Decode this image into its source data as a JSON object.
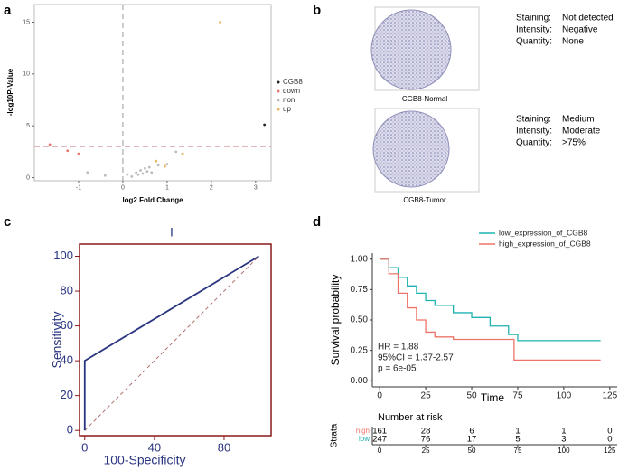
{
  "panel_labels": [
    "a",
    "b",
    "c",
    "d"
  ],
  "chart_data": [
    {
      "type": "scatter",
      "x_label": "log2 Fold Change",
      "y_label": "-log10P-Value",
      "xlim": [
        -2,
        3.35
      ],
      "ylim": [
        -0.3,
        16.7
      ],
      "xticks": [
        -1,
        0,
        1,
        2,
        3
      ],
      "yticks": [
        0,
        5,
        10,
        15
      ],
      "vline": 0,
      "hline": 3,
      "series": [
        {
          "name": "CGB8",
          "color": "#222222",
          "x": [
            3.2
          ],
          "values": [
            5.1
          ]
        },
        {
          "name": "down",
          "color": "#e8756b",
          "x": [
            -1.65,
            -1.25,
            -1.0
          ],
          "values": [
            3.2,
            2.6,
            2.3
          ]
        },
        {
          "name": "non",
          "color": "#bbbbbb",
          "x": [
            -0.8,
            -0.4,
            0.1,
            0.2,
            0.3,
            0.35,
            0.4,
            0.45,
            0.5,
            0.55,
            0.6,
            0.65,
            0.8,
            1.0,
            1.2
          ],
          "values": [
            0.5,
            0.2,
            0.3,
            0.1,
            0.5,
            0.3,
            0.7,
            0.4,
            0.9,
            0.6,
            1.0,
            0.5,
            1.2,
            1.3,
            2.5
          ]
        },
        {
          "name": "up",
          "color": "#e5b45c",
          "x": [
            2.2,
            0.75,
            0.95,
            1.35
          ],
          "values": [
            15,
            1.6,
            1.1,
            2.3
          ]
        }
      ]
    },
    {
      "type": "roc",
      "title": "I",
      "x_label": "100-Specificity",
      "y_label": "Sensitivity",
      "xlim": [
        -3,
        107
      ],
      "ylim": [
        -3,
        107
      ],
      "xticks": [
        0,
        40,
        80
      ],
      "yticks": [
        0,
        20,
        40,
        60,
        80,
        100
      ],
      "series": [
        {
          "color": "#2a3580",
          "x": [
            0,
            0,
            100
          ],
          "values": [
            0,
            40,
            100
          ]
        }
      ]
    },
    {
      "type": "survival",
      "x_label": "Time",
      "y_label": "Survival probability",
      "xlim": [
        -4,
        129
      ],
      "ylim": [
        -0.05,
        1.05
      ],
      "xticks": [
        0,
        25,
        50,
        75,
        100,
        125
      ],
      "yticks": [
        {
          "value": 0,
          "label": "0.00"
        },
        {
          "value": 0.25,
          "label": "0.25"
        },
        {
          "value": 0.5,
          "label": "0.50"
        },
        {
          "value": 0.75,
          "label": "0.75"
        },
        {
          "value": 1,
          "label": "1.00"
        }
      ],
      "series": [
        {
          "name": "low_expression_of_CGB8",
          "color": "#1fb3b0",
          "x": [
            0,
            5,
            10,
            15,
            20,
            25,
            30,
            40,
            50,
            60,
            70,
            75,
            120
          ],
          "values": [
            1,
            0.93,
            0.85,
            0.78,
            0.72,
            0.66,
            0.62,
            0.56,
            0.52,
            0.45,
            0.38,
            0.33,
            0.33
          ]
        },
        {
          "name": "high_expression_of_CGB8",
          "color": "#ec7468",
          "x": [
            0,
            5,
            10,
            15,
            20,
            25,
            30,
            40,
            73,
            120
          ],
          "values": [
            1,
            0.88,
            0.72,
            0.6,
            0.5,
            0.4,
            0.36,
            0.34,
            0.17,
            0.17
          ]
        }
      ],
      "annotations": [
        "HR = 1.88",
        "95%CI = 1.37-2.57",
        "p = 6e-05"
      ],
      "risk_table": {
        "title": "Number at risk",
        "strata_label": "Strata",
        "rows": [
          {
            "name": "high",
            "color": "#ec7468",
            "values": [
              161,
              28,
              6,
              1,
              1,
              0
            ]
          },
          {
            "name": "low",
            "color": "#1fb3b0",
            "values": [
              247,
              76,
              17,
              5,
              3,
              0
            ]
          }
        ]
      }
    }
  ],
  "tissue_panels": [
    {
      "caption": "CGB8-Normal",
      "rows": [
        [
          "Staining:",
          "Not detected"
        ],
        [
          "Intensity:",
          "Negative"
        ],
        [
          "Quantity:",
          "None"
        ]
      ]
    },
    {
      "caption": "CGB8-Tumor",
      "rows": [
        [
          "Staining:",
          "Medium"
        ],
        [
          "Intensity:",
          "Moderate"
        ],
        [
          "Quantity:",
          ">75%"
        ]
      ]
    }
  ]
}
